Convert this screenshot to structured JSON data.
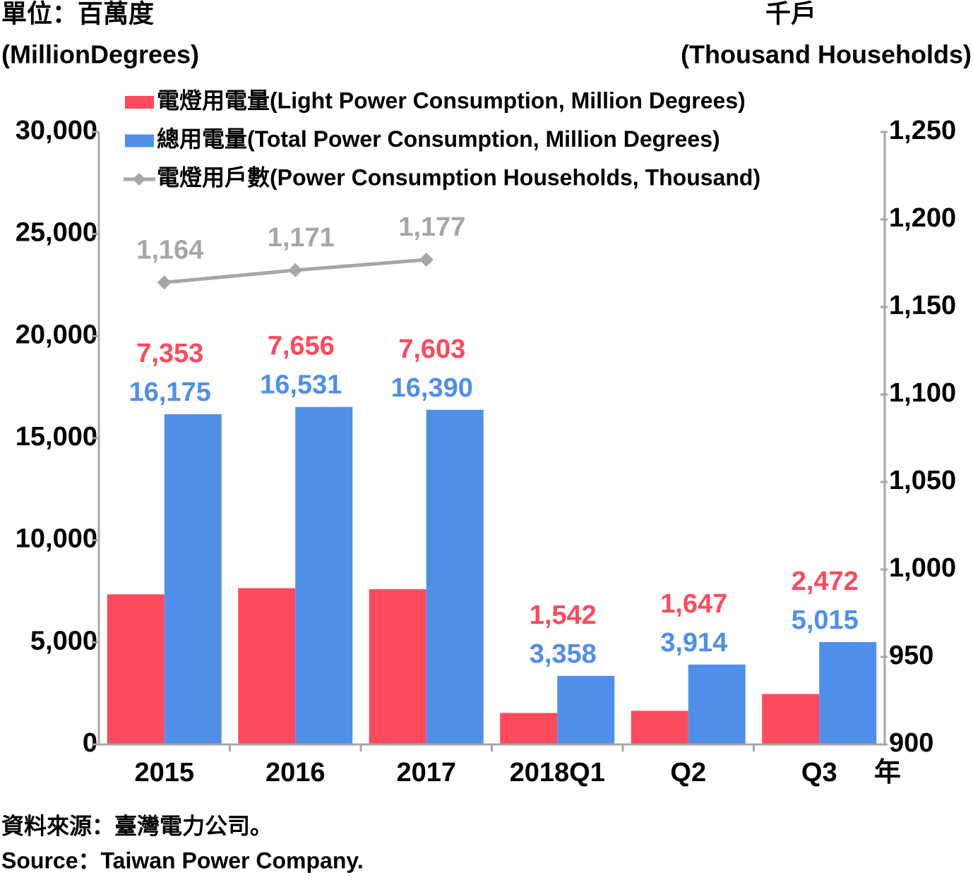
{
  "chart_data": {
    "type": "bar",
    "y_label": [
      "單位：百萬度",
      "(MillionDegrees)"
    ],
    "y2_label": [
      "千戶",
      "(Thousand Households)"
    ],
    "x_label": "年",
    "categories": [
      "2015",
      "2016",
      "2017",
      "2018Q1",
      "Q2",
      "Q3"
    ],
    "series": [
      {
        "name": "電燈用電量(Light Power Consumption, Million Degrees)",
        "type": "bar",
        "color": "#fd4a5c",
        "values": [
          7353,
          7656,
          7603,
          1542,
          1647,
          2472
        ],
        "value_labels": [
          "7,353",
          "7,656",
          "7,603",
          "1,542",
          "1,647",
          "2,472"
        ]
      },
      {
        "name": "總用電量(Total Power Consumption, Million Degrees)",
        "type": "bar",
        "color": "#4f8fea",
        "values": [
          16175,
          16531,
          16390,
          3358,
          3914,
          5015
        ],
        "value_labels": [
          "16,175",
          "16,531",
          "16,390",
          "3,358",
          "3,914",
          "5,015"
        ]
      },
      {
        "name": "電燈用戶數(Power Consumption Households, Thousand)",
        "type": "line",
        "axis": "y2",
        "color": "#a6a6a6",
        "values": [
          1164,
          1171,
          1177,
          null,
          null,
          null
        ],
        "value_labels": [
          "1,164",
          "1,171",
          "1,177",
          null,
          null,
          null
        ]
      }
    ],
    "ylim": [
      0,
      30000
    ],
    "yticks": [
      0,
      {
        "value": 5000,
        "label": "5,000"
      },
      {
        "value": 10000,
        "label": "10,000"
      },
      {
        "value": 15000,
        "label": "15,000"
      },
      {
        "value": 20000,
        "label": "20,000"
      },
      {
        "value": 25000,
        "label": "25,000"
      },
      {
        "value": 30000,
        "label": "30,000"
      }
    ],
    "y2lim": [
      900,
      1250
    ],
    "y2ticks": [
      900,
      950,
      {
        "value": 1000,
        "label": "1,000"
      },
      {
        "value": 1050,
        "label": "1,050"
      },
      {
        "value": 1100,
        "label": "1,100"
      },
      {
        "value": 1150,
        "label": "1,150"
      },
      {
        "value": 1200,
        "label": "1,200"
      },
      {
        "value": 1250,
        "label": "1,250"
      }
    ],
    "grid": false,
    "legend": "top",
    "source": [
      "資料來源：臺灣電力公司。",
      "Source：Taiwan Power Company."
    ]
  }
}
